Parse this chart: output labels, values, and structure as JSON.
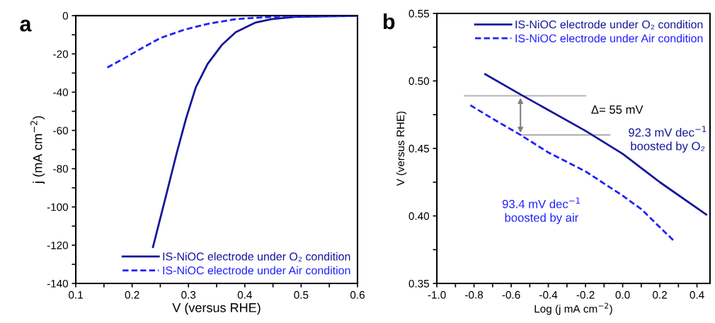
{
  "chart_data": [
    {
      "type": "line",
      "title": "a",
      "xlabel": "V (versus RHE)",
      "ylabel": "j (mA cm$^{−2}$)",
      "xlim": [
        0.1,
        0.6
      ],
      "xticks": [
        0.1,
        {
          "value": 0.15,
          "label": null
        },
        0.2,
        {
          "value": 0.25,
          "label": null
        },
        0.3,
        {
          "value": 0.35,
          "label": null
        },
        0.4,
        {
          "value": 0.45,
          "label": null
        },
        0.5,
        {
          "value": 0.55,
          "label": null
        },
        0.6
      ],
      "ylim": [
        -140,
        0
      ],
      "yticks": [
        -140,
        {
          "value": -130,
          "label": null
        },
        -120,
        {
          "value": -110,
          "label": null
        },
        -100,
        {
          "value": -90,
          "label": null
        },
        -80,
        {
          "value": -70,
          "label": null
        },
        -60,
        {
          "value": -50,
          "label": null
        },
        -40,
        {
          "value": -30,
          "label": null
        },
        -20,
        {
          "value": -10,
          "label": null
        },
        0
      ],
      "legend": "bottom right",
      "grid": false,
      "series": [
        {
          "name": "IS-NiOC electrode under O₂ condition",
          "color": "#16169a",
          "line_style": "solid",
          "x": [
            0.237,
            0.258,
            0.279,
            0.296,
            0.313,
            0.334,
            0.359,
            0.384,
            0.418,
            0.447,
            0.489,
            0.6
          ],
          "values": [
            -121,
            -96.6,
            -72,
            -53.5,
            -37.5,
            -25.2,
            -15.4,
            -8.6,
            -3.7,
            -1.8,
            -0.6,
            -0.1
          ]
        },
        {
          "name": "IS-NiOC electrode under Air condition",
          "color": "#2020ff",
          "line_style": "dashed",
          "x": [
            0.156,
            0.183,
            0.216,
            0.25,
            0.292,
            0.334,
            0.384,
            0.447,
            0.51,
            0.6
          ],
          "values": [
            -27.1,
            -22.8,
            -17.2,
            -11.7,
            -7.4,
            -4.3,
            -1.8,
            -0.6,
            -0.1,
            0
          ]
        }
      ]
    },
    {
      "type": "line",
      "title": "b",
      "xlabel": "Log (j mA cm$^{−2}$)",
      "ylabel": "V (versus RHE)",
      "xlim": [
        -1.0,
        0.47
      ],
      "xticks": [
        {
          "value": -1.0,
          "label": "-1.0"
        },
        {
          "value": -0.9,
          "label": null
        },
        -0.8,
        {
          "value": -0.7,
          "label": null
        },
        -0.6,
        {
          "value": -0.5,
          "label": null
        },
        -0.4,
        {
          "value": -0.3,
          "label": null
        },
        -0.2,
        {
          "value": -0.1,
          "label": null
        },
        {
          "value": 0.0,
          "label": "0.0"
        },
        {
          "value": 0.1,
          "label": null
        },
        0.2,
        {
          "value": 0.3,
          "label": null
        },
        0.4
      ],
      "ylim": [
        0.35,
        0.55
      ],
      "yticks": [
        0.35,
        {
          "value": 0.375,
          "label": null
        },
        {
          "value": 0.4,
          "label": "0.40"
        },
        {
          "value": 0.425,
          "label": null
        },
        0.45,
        {
          "value": 0.475,
          "label": null
        },
        {
          "value": 0.5,
          "label": "0.50"
        },
        {
          "value": 0.525,
          "label": null
        },
        0.55
      ],
      "legend": "top right",
      "grid": false,
      "series": [
        {
          "name": "IS-NiOC electrode under O₂ condition",
          "color": "#16169a",
          "line_style": "solid",
          "x": [
            -0.74,
            -0.55,
            -0.2,
            0.0,
            0.2,
            0.45
          ],
          "values": [
            0.505,
            0.49,
            0.463,
            0.446,
            0.425,
            0.401
          ]
        },
        {
          "name": "IS-NiOC electrode under Air condition",
          "color": "#2020ff",
          "line_style": "dashed",
          "x": [
            -0.82,
            -0.7,
            -0.55,
            -0.4,
            -0.2,
            0.0,
            0.1,
            0.28
          ],
          "values": [
            0.482,
            0.472,
            0.46,
            0.447,
            0.433,
            0.415,
            0.405,
            0.381
          ]
        },
        {
          "color": "#b4b4b4",
          "line_style": "solid",
          "x": [
            -0.85,
            -0.2
          ],
          "values": [
            0.489,
            0.489
          ]
        },
        {
          "color": "#b4b4b4",
          "line_style": "solid",
          "x": [
            -0.55,
            -0.07
          ],
          "values": [
            0.46,
            0.46
          ]
        }
      ],
      "annotations": [
        "Δ= 55 mV",
        "92.3 mV dec$^{−1}$\nboosted by O₂",
        "93.4 mV dec$^{−1}$\nboosted by air"
      ]
    }
  ]
}
